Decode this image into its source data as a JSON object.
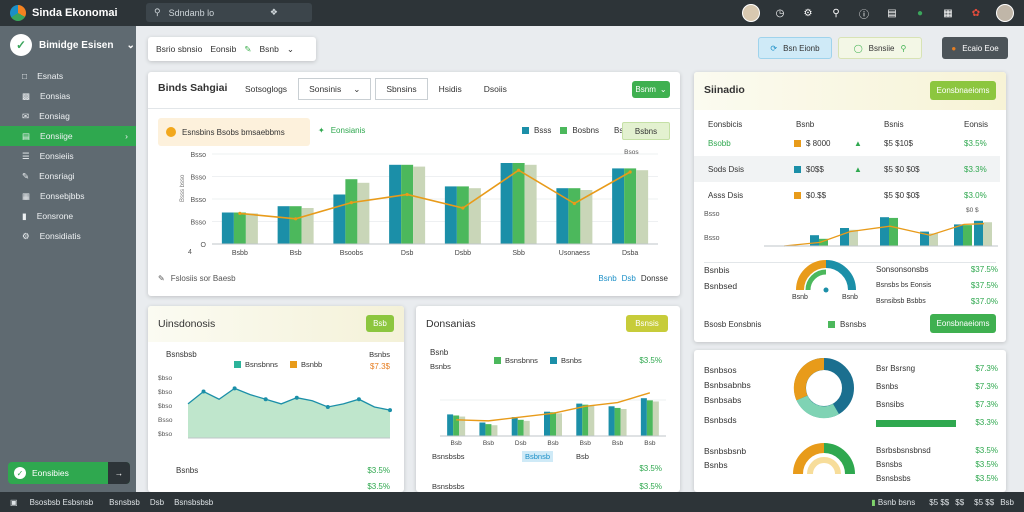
{
  "app": {
    "title": "Sinda Ekonomai"
  },
  "search": {
    "placeholder": "Sdndanb lo"
  },
  "topbar": {
    "icons": [
      "avatar",
      "clock-icon",
      "gear-icon",
      "bell-icon",
      "info-icon",
      "book-icon",
      "android-icon",
      "grid-icon",
      "plant-icon",
      "user-avatar"
    ]
  },
  "sidebar": {
    "header": "Bimidge Esisen",
    "items": [
      {
        "label": "Esnats",
        "icon": "home-icon"
      },
      {
        "label": "Eonsias",
        "icon": "doc-icon"
      },
      {
        "label": "Eonsiag",
        "icon": "mail-icon"
      },
      {
        "label": "Eonsiige",
        "icon": "chart-icon",
        "active": true
      },
      {
        "label": "Eonsieiis",
        "icon": "list-icon"
      },
      {
        "label": "Eonsriagi",
        "icon": "edit-icon"
      },
      {
        "label": "Eonsebjbbs",
        "icon": "calendar-icon"
      },
      {
        "label": "Eonsrone",
        "icon": "bar-icon"
      },
      {
        "label": "Eonsidiatis",
        "icon": "settings-icon"
      }
    ],
    "bottom_button": "Eonsibies"
  },
  "toolbar": {
    "left": {
      "a": "Bsrio sbnsio",
      "b": "Eonsib",
      "c": "Bsnb"
    },
    "right": {
      "a": "Bsn Eionb",
      "b": "Bsnsiie",
      "c": "Ecaio Eoe"
    }
  },
  "main_card": {
    "title": "Binds Sahgiai",
    "tabs": [
      "Sotsoglogs",
      "Sonsinis",
      "Sbnsins",
      "Hsidis",
      "Dsoiis"
    ],
    "action_button": "Bsnm",
    "note": "Esnsbins Bsobs bmsaebbms",
    "tag": "Eonsianis",
    "legend": [
      {
        "label": "Bsss",
        "color": "#1b8fa8"
      },
      {
        "label": "Bosbns",
        "color": "#4cb85c"
      }
    ],
    "legend_extra": "Bsosibs",
    "legend_badge": "Bsbns",
    "footer_left": "Fslosiis sor Baesb",
    "footer_right_a": "Bsnb",
    "footer_right_b": "Dsb",
    "footer_right_c": "Donsse",
    "chart": {
      "yticks": [
        "Bsso",
        "Bsso",
        "Bsso",
        "Bsso",
        "O"
      ],
      "ylabel": "Bsss bsso",
      "corner": "4",
      "categories": [
        "Bsbb",
        "Bsb",
        "Bsoobs",
        "Dsb",
        "Dsbb",
        "Sbb",
        "Usonaess",
        "Dsba"
      ],
      "top_label": "Bsos",
      "series": [
        {
          "name": "Bsss",
          "color": "#1b8fa8",
          "values": [
            35,
            42,
            55,
            88,
            64,
            90,
            62,
            84
          ]
        },
        {
          "name": "Bosbns",
          "color": "#4cb85c",
          "values": [
            35,
            42,
            72,
            88,
            64,
            90,
            62,
            84
          ]
        },
        {
          "name": "Bsosibs",
          "color": "#c9d6b8",
          "values": [
            34,
            40,
            68,
            86,
            62,
            88,
            60,
            82
          ]
        }
      ],
      "line": {
        "color": "#e89b1a",
        "values": [
          34,
          28,
          46,
          55,
          40,
          82,
          45,
          80
        ]
      }
    }
  },
  "right_card": {
    "title": "Siinadio",
    "button": "Eonsbnaeioms",
    "headers": [
      "Eonsbicis",
      "Bsnb",
      "Bsnis",
      "Eonsis"
    ],
    "rows": [
      {
        "name": "Bsobb",
        "color": "#e89b1a",
        "count": "$ 8000",
        "amount": "$5 $10$",
        "pct": "$3.5%"
      },
      {
        "name": "Sods Dsis",
        "color": "#1b8fa8",
        "count": "$0$$",
        "amount": "$5 $0 $0$",
        "pct": "$3.3%"
      },
      {
        "name": "Asss Dsis",
        "color": "#e89b1a",
        "count": "$0.$$",
        "amount": "$5 $0 $0$",
        "pct": "$3.0%"
      }
    ],
    "minichart": {
      "yticks": [
        "Bsso",
        "Bsso"
      ],
      "top_label": "$0 $",
      "bars_a": [
        30,
        50,
        80,
        40,
        60,
        70
      ],
      "bars_b": [
        20,
        45,
        78,
        35,
        58,
        66
      ],
      "line": [
        10,
        40,
        55,
        30,
        60,
        62
      ]
    },
    "donut_left": [
      "Bsnbis",
      "Bsnbsed"
    ],
    "donut_caption_a": "Bsnb",
    "donut_caption_b": "Bsnb",
    "donut_right": [
      {
        "label": "Sonsonsonsbs",
        "value": "$37.5%"
      },
      {
        "label": "Bsnsbs bs Eonsis",
        "value": "$37.5%"
      },
      {
        "label": "Bsnsibsb Bsbbs",
        "value": "$37.0%"
      }
    ],
    "footer_label": "Bsosb Eonsbnis",
    "footer_tag": "Bsnsbs",
    "footer_button": "Eonsbnaeioms"
  },
  "area_card": {
    "title": "Uinsdonosis",
    "button": "Bsb",
    "label": "Bsnsbsb",
    "legend": [
      {
        "label": "Bsnsbnns",
        "color": "#2bb39a"
      },
      {
        "label": "Bsnbb",
        "color": "#e89b1a"
      }
    ],
    "right_label": "Bsnbs",
    "right_value": "$7.3$",
    "yticks": [
      "$bso",
      "$bso",
      "$bso",
      "Bsso",
      "$bso"
    ],
    "values": [
      52,
      60,
      55,
      62,
      58,
      55,
      52,
      56,
      54,
      50,
      52,
      55,
      50,
      48
    ],
    "footer_label": "Bsnbs",
    "footer_value": "$3.5%",
    "footer_value_b": "$3.5%"
  },
  "mid_card": {
    "title": "Donsanias",
    "button": "Bsnsis",
    "label": "Bsnb",
    "sublabel": "Bsnbs",
    "legend": [
      {
        "label": "Bsnsbnns",
        "color": "#4cb85c"
      },
      {
        "label": "Bsnbs",
        "color": "#1b8fa8"
      }
    ],
    "right_value": "$3.5%",
    "xticks": [
      "Bsb",
      "Bsb",
      "Dsb",
      "Bsb",
      "Bsb",
      "Bsb",
      "Bsb"
    ],
    "bars_a": [
      40,
      25,
      35,
      45,
      60,
      55,
      70
    ],
    "bars_b": [
      38,
      22,
      30,
      44,
      58,
      52,
      66
    ],
    "bars_c": [
      36,
      20,
      28,
      42,
      56,
      50,
      64
    ],
    "line": [
      30,
      28,
      35,
      42,
      55,
      62,
      80
    ],
    "row1_label": "Bsnsbsbs",
    "row1_badge": "Bsbnsb",
    "row1_badge2": "Bsb",
    "row1_value": "$3.5%",
    "row2_label": "Bsnsbsbs",
    "row2_value": "$3.5%"
  },
  "bottom_right": {
    "left_rows": [
      "Bsnbsos",
      "Bsnbsabnbs",
      "Bsnbsabs",
      "Bsnbsds"
    ],
    "right_rows": [
      {
        "label": "Bsr Bsrsng",
        "value": "$7.3%"
      },
      {
        "label": "Bsnbs",
        "value": "$7.3%"
      },
      {
        "label": "Bsnsibs",
        "value": "$7.3%"
      },
      {
        "label": "",
        "value": "$3.3%"
      }
    ],
    "lower_left": [
      "Bsnbsbsnb",
      "Bsnbs"
    ],
    "lower_right": [
      {
        "label": "Bsrbsbsnsbnsd",
        "value": "$3.5%"
      },
      {
        "label": "Bsnsbs",
        "value": "$3.5%"
      },
      {
        "label": "Bsnsbsbs",
        "value": "$3.5%"
      }
    ]
  },
  "bottombar": {
    "left": [
      "Bsosbsb Esbsnsb",
      "Bsnsbsb",
      "Dsb",
      "Bsnsbsbsb"
    ],
    "right_badge": "Bsnb bsns",
    "right": [
      "$5 $$",
      "$$",
      "$5 $$",
      "Bsb"
    ]
  }
}
